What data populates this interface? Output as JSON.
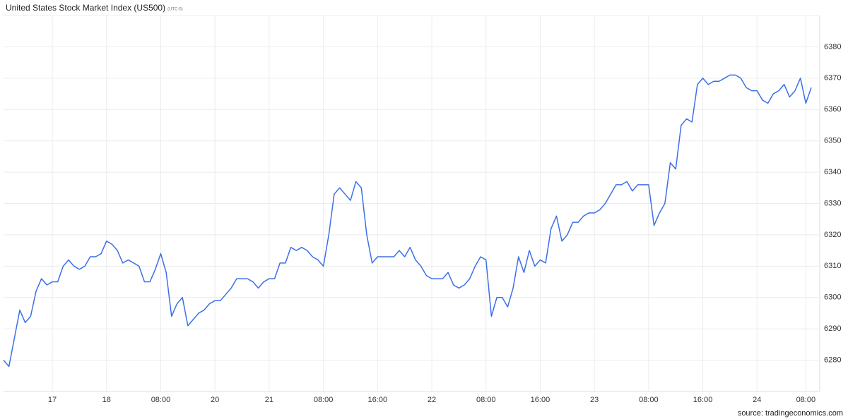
{
  "chart_data": {
    "type": "line",
    "title": "United States Stock Market Index (US500)",
    "subtitle": "(UTC-5)",
    "source": "source: tradingeconomics.com",
    "color": "#3b6fe8",
    "grid": true,
    "categories": [
      null,
      null,
      null,
      null,
      null,
      null,
      null,
      null,
      null,
      "17",
      null,
      null,
      null,
      null,
      null,
      null,
      null,
      null,
      null,
      "18",
      null,
      null,
      null,
      null,
      null,
      null,
      null,
      null,
      null,
      "08:00",
      null,
      null,
      null,
      null,
      null,
      null,
      null,
      null,
      null,
      "20",
      null,
      null,
      null,
      null,
      null,
      null,
      null,
      null,
      null,
      "21",
      null,
      null,
      null,
      null,
      null,
      null,
      null,
      null,
      null,
      "08:00",
      null,
      null,
      null,
      null,
      null,
      null,
      null,
      null,
      null,
      "16:00",
      null,
      null,
      null,
      null,
      null,
      null,
      null,
      null,
      null,
      "22",
      null,
      null,
      null,
      null,
      null,
      null,
      null,
      null,
      null,
      "08:00",
      null,
      null,
      null,
      null,
      null,
      null,
      null,
      null,
      null,
      "16:00",
      null,
      null,
      null,
      null,
      null,
      null,
      null,
      null,
      null,
      "23",
      null,
      null,
      null,
      null,
      null,
      null,
      null,
      null,
      null,
      "08:00",
      null,
      null,
      null,
      null,
      null,
      null,
      null,
      null,
      null,
      "16:00",
      null,
      null,
      null,
      null,
      null,
      null,
      null,
      null,
      null,
      "24",
      null,
      null,
      null,
      null,
      null,
      null,
      null,
      null,
      "08:00",
      null
    ],
    "values": [
      6280,
      6278,
      6287,
      6296,
      6292,
      6294,
      6302,
      6306,
      6304,
      6305,
      6305,
      6310,
      6312,
      6310,
      6309,
      6310,
      6313,
      6313,
      6314,
      6318,
      6317,
      6315,
      6311,
      6312,
      6311,
      6310,
      6305,
      6305,
      6309,
      6314,
      6308,
      6294,
      6298,
      6300,
      6291,
      6293,
      6295,
      6296,
      6298,
      6299,
      6299,
      6301,
      6303,
      6306,
      6306,
      6306,
      6305,
      6303,
      6305,
      6306,
      6306,
      6311,
      6311,
      6316,
      6315,
      6316,
      6315,
      6313,
      6312,
      6310,
      6320,
      6333,
      6335,
      6333,
      6331,
      6337,
      6335,
      6320,
      6311,
      6313,
      6313,
      6313,
      6313,
      6315,
      6313,
      6316,
      6312,
      6310,
      6307,
      6306,
      6306,
      6306,
      6308,
      6304,
      6303,
      6304,
      6306,
      6310,
      6313,
      6312,
      6294,
      6300,
      6300,
      6297,
      6303,
      6313,
      6308,
      6315,
      6310,
      6312,
      6311,
      6322,
      6326,
      6318,
      6320,
      6324,
      6324,
      6326,
      6327,
      6327,
      6328,
      6330,
      6333,
      6336,
      6336,
      6337,
      6334,
      6336,
      6336,
      6336,
      6323,
      6327,
      6330,
      6343,
      6341,
      6355,
      6357,
      6356,
      6368,
      6370,
      6368,
      6369,
      6369,
      6370,
      6371,
      6371,
      6370,
      6367,
      6366,
      6366,
      6363,
      6362,
      6365,
      6366,
      6368,
      6364,
      6366,
      6370,
      6362,
      6367
    ],
    "ylim": [
      6270,
      6390
    ],
    "yticks": [
      6280,
      6290,
      6300,
      6310,
      6320,
      6330,
      6340,
      6350,
      6360,
      6370,
      6380
    ]
  }
}
